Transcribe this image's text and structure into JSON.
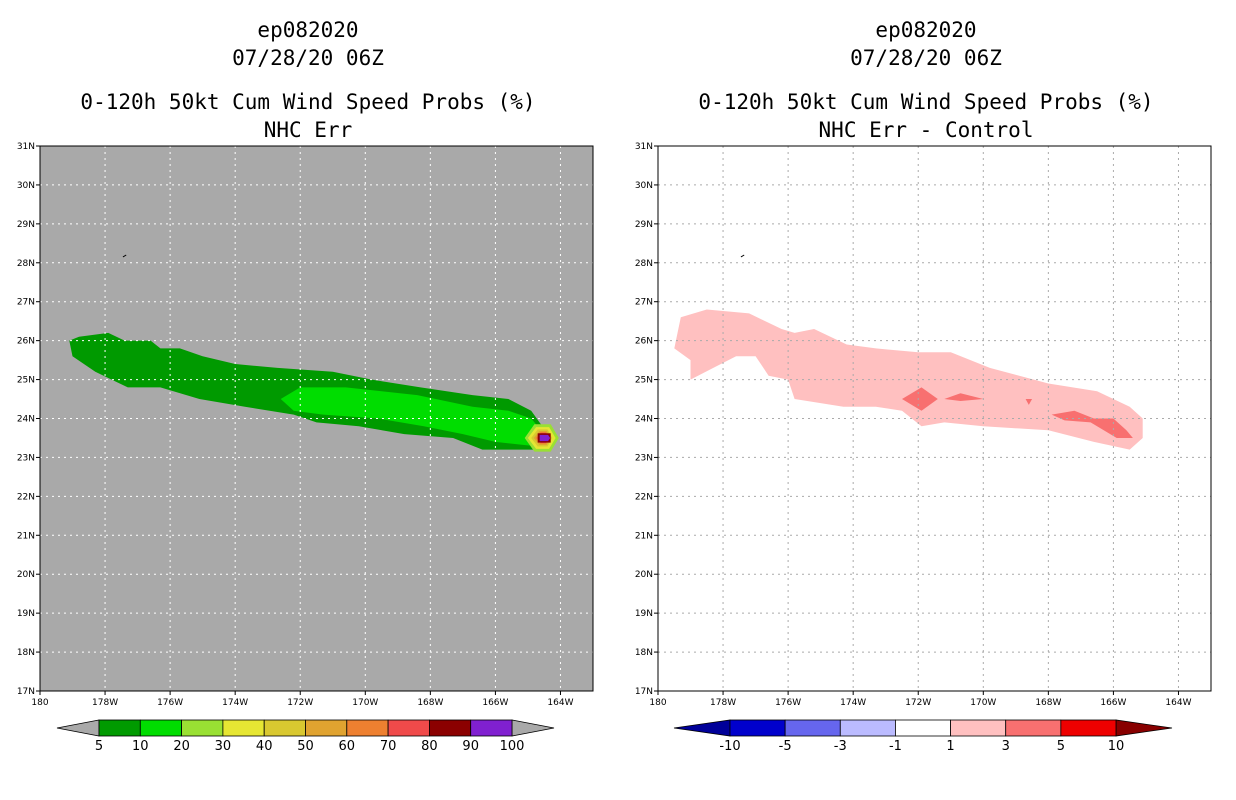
{
  "chart_data": [
    {
      "type": "heatmap",
      "panel": "left",
      "title_lines": [
        "ep082020",
        "07/28/20 06Z",
        "0-120h 50kt Cum Wind Speed Probs (%)",
        "NHC Err"
      ],
      "xlim": [
        -180,
        -163
      ],
      "ylim": [
        17,
        31
      ],
      "x_ticks": [
        -180,
        -178,
        -176,
        -174,
        -172,
        -170,
        -168,
        -166,
        -164
      ],
      "x_tick_labels": [
        "180",
        "178W",
        "176W",
        "174W",
        "172W",
        "170W",
        "168W",
        "166W",
        "164W"
      ],
      "y_ticks": [
        17,
        18,
        19,
        20,
        21,
        22,
        23,
        24,
        25,
        26,
        27,
        28,
        29,
        30,
        31
      ],
      "y_tick_labels": [
        "17N",
        "18N",
        "19N",
        "20N",
        "21N",
        "22N",
        "23N",
        "24N",
        "25N",
        "26N",
        "27N",
        "28N",
        "29N",
        "30N",
        "31N"
      ],
      "grid": true,
      "background": "#a9a9a9",
      "colorbar": {
        "labels": [
          "5",
          "10",
          "20",
          "30",
          "40",
          "50",
          "60",
          "70",
          "80",
          "90",
          "100"
        ],
        "colors": [
          "#009a00",
          "#00dd00",
          "#99e033",
          "#e6e633",
          "#d9c830",
          "#e0a330",
          "#ee8030",
          "#f04a4a",
          "#8b0000",
          "#8020d0"
        ],
        "end_color": "#a9a9a9"
      },
      "contours": [
        {
          "level": "5-10",
          "color": "#009a00",
          "points": [
            [
              -179.1,
              26.0
            ],
            [
              -178.8,
              26.1
            ],
            [
              -177.9,
              26.2
            ],
            [
              -177.4,
              26.0
            ],
            [
              -176.6,
              26.0
            ],
            [
              -176.3,
              25.8
            ],
            [
              -175.7,
              25.8
            ],
            [
              -175.0,
              25.6
            ],
            [
              -174.0,
              25.4
            ],
            [
              -172.7,
              25.3
            ],
            [
              -171.0,
              25.2
            ],
            [
              -169.8,
              25.0
            ],
            [
              -168.3,
              24.8
            ],
            [
              -166.7,
              24.6
            ],
            [
              -165.6,
              24.5
            ],
            [
              -164.9,
              24.2
            ],
            [
              -164.3,
              23.5
            ],
            [
              -164.7,
              23.2
            ],
            [
              -165.6,
              23.2
            ],
            [
              -166.4,
              23.2
            ],
            [
              -167.3,
              23.5
            ],
            [
              -168.8,
              23.6
            ],
            [
              -170.2,
              23.8
            ],
            [
              -171.5,
              23.9
            ],
            [
              -172.2,
              24.1
            ],
            [
              -173.7,
              24.3
            ],
            [
              -175.1,
              24.5
            ],
            [
              -176.3,
              24.8
            ],
            [
              -177.3,
              24.8
            ],
            [
              -178.3,
              25.2
            ],
            [
              -179.0,
              25.6
            ]
          ]
        },
        {
          "level": "10-20",
          "color": "#00dd00",
          "points": [
            [
              -172.6,
              24.5
            ],
            [
              -172.0,
              24.8
            ],
            [
              -170.6,
              24.8
            ],
            [
              -169.5,
              24.7
            ],
            [
              -168.4,
              24.6
            ],
            [
              -166.7,
              24.3
            ],
            [
              -165.6,
              24.2
            ],
            [
              -164.9,
              24.0
            ],
            [
              -164.4,
              23.5
            ],
            [
              -164.9,
              23.3
            ],
            [
              -166.0,
              23.4
            ],
            [
              -167.0,
              23.6
            ],
            [
              -168.2,
              23.8
            ],
            [
              -169.6,
              24.0
            ],
            [
              -171.3,
              24.1
            ],
            [
              -172.2,
              24.2
            ]
          ]
        },
        {
          "level": "20-30",
          "color": "#99e033",
          "points": [
            [
              -165.1,
              23.5
            ],
            [
              -164.8,
              23.85
            ],
            [
              -164.3,
              23.85
            ],
            [
              -164.05,
              23.5
            ],
            [
              -164.3,
              23.15
            ],
            [
              -164.8,
              23.15
            ]
          ]
        },
        {
          "level": "30-40",
          "color": "#e6e633",
          "points": [
            [
              -165.0,
              23.5
            ],
            [
              -164.75,
              23.78
            ],
            [
              -164.35,
              23.78
            ],
            [
              -164.15,
              23.5
            ],
            [
              -164.35,
              23.22
            ],
            [
              -164.75,
              23.22
            ]
          ]
        },
        {
          "level": "40-50",
          "color": "#d9c830",
          "points": [
            [
              -164.9,
              23.5
            ],
            [
              -164.7,
              23.72
            ],
            [
              -164.4,
              23.72
            ],
            [
              -164.25,
              23.5
            ],
            [
              -164.4,
              23.28
            ],
            [
              -164.7,
              23.28
            ]
          ]
        },
        {
          "level": "50-60",
          "color": "#e0a330",
          "points": [
            [
              -164.82,
              23.5
            ],
            [
              -164.65,
              23.68
            ],
            [
              -164.42,
              23.68
            ],
            [
              -164.3,
              23.5
            ],
            [
              -164.42,
              23.32
            ],
            [
              -164.65,
              23.32
            ]
          ]
        },
        {
          "level": "60-70",
          "color": "#ee8030",
          "points": [
            [
              -164.76,
              23.5
            ],
            [
              -164.62,
              23.65
            ],
            [
              -164.44,
              23.65
            ],
            [
              -164.34,
              23.5
            ],
            [
              -164.44,
              23.35
            ],
            [
              -164.62,
              23.35
            ]
          ]
        },
        {
          "level": "70-80",
          "color": "#f04a4a",
          "points": [
            [
              -164.72,
              23.5
            ],
            [
              -164.6,
              23.63
            ],
            [
              -164.45,
              23.63
            ],
            [
              -164.37,
              23.5
            ],
            [
              -164.45,
              23.37
            ],
            [
              -164.6,
              23.37
            ]
          ]
        },
        {
          "level": "80-90",
          "color": "#8b0000",
          "points": [
            [
              -164.7,
              23.62
            ],
            [
              -164.3,
              23.62
            ],
            [
              -164.3,
              23.38
            ],
            [
              -164.7,
              23.38
            ]
          ]
        },
        {
          "level": "90-100",
          "color": "#8020d0",
          "points": [
            [
              -164.64,
              23.58
            ],
            [
              -164.38,
              23.58
            ],
            [
              -164.32,
              23.5
            ],
            [
              -164.38,
              23.42
            ],
            [
              -164.64,
              23.42
            ]
          ]
        }
      ]
    },
    {
      "type": "heatmap",
      "panel": "right",
      "title_lines": [
        "ep082020",
        "07/28/20 06Z",
        "0-120h 50kt Cum Wind Speed Probs (%)",
        "NHC Err - Control"
      ],
      "xlim": [
        -180,
        -163
      ],
      "ylim": [
        17,
        31
      ],
      "x_ticks": [
        -180,
        -178,
        -176,
        -174,
        -172,
        -170,
        -168,
        -166,
        -164
      ],
      "x_tick_labels": [
        "180",
        "178W",
        "176W",
        "174W",
        "172W",
        "170W",
        "168W",
        "166W",
        "164W"
      ],
      "y_ticks": [
        17,
        18,
        19,
        20,
        21,
        22,
        23,
        24,
        25,
        26,
        27,
        28,
        29,
        30,
        31
      ],
      "y_tick_labels": [
        "17N",
        "18N",
        "19N",
        "20N",
        "21N",
        "22N",
        "23N",
        "24N",
        "25N",
        "26N",
        "27N",
        "28N",
        "29N",
        "30N",
        "31N"
      ],
      "grid": true,
      "background": "#ffffff",
      "colorbar": {
        "labels": [
          "-10",
          "-5",
          "-3",
          "-1",
          "1",
          "3",
          "5",
          "10"
        ],
        "colors": [
          "#0000cc",
          "#6666ee",
          "#bbbbff",
          "#ffffff",
          "#ffc0c0",
          "#f87070",
          "#ee0000"
        ],
        "left_end_color": "#000099",
        "right_end_color": "#880000"
      },
      "contours": [
        {
          "level": "1-3",
          "color": "#ffc0c0",
          "points": [
            [
              -179.5,
              25.8
            ],
            [
              -179.3,
              26.6
            ],
            [
              -178.5,
              26.8
            ],
            [
              -177.2,
              26.7
            ],
            [
              -176.2,
              26.3
            ],
            [
              -175.8,
              26.2
            ],
            [
              -175.2,
              26.3
            ],
            [
              -174.2,
              25.9
            ],
            [
              -173.3,
              25.8
            ],
            [
              -172.0,
              25.7
            ],
            [
              -171.0,
              25.7
            ],
            [
              -169.8,
              25.3
            ],
            [
              -168.0,
              24.9
            ],
            [
              -166.5,
              24.7
            ],
            [
              -165.5,
              24.3
            ],
            [
              -165.1,
              24.0
            ],
            [
              -165.1,
              23.5
            ],
            [
              -165.5,
              23.2
            ],
            [
              -166.6,
              23.4
            ],
            [
              -168.0,
              23.7
            ],
            [
              -170.0,
              23.8
            ],
            [
              -171.2,
              23.9
            ],
            [
              -171.9,
              23.8
            ],
            [
              -172.5,
              24.2
            ],
            [
              -173.3,
              24.3
            ],
            [
              -174.3,
              24.3
            ],
            [
              -175.8,
              24.5
            ],
            [
              -176.0,
              25.0
            ],
            [
              -176.6,
              25.1
            ],
            [
              -177.0,
              25.6
            ],
            [
              -177.6,
              25.6
            ],
            [
              -178.3,
              25.3
            ],
            [
              -179.0,
              25.0
            ],
            [
              -179.0,
              25.5
            ]
          ]
        },
        {
          "level": "3-5",
          "color": "#f87070",
          "points": [
            [
              -172.5,
              24.5
            ],
            [
              -171.9,
              24.8
            ],
            [
              -171.4,
              24.5
            ],
            [
              -171.9,
              24.2
            ]
          ]
        },
        {
          "level": "3-5",
          "color": "#f87070",
          "points": [
            [
              -171.2,
              24.5
            ],
            [
              -170.7,
              24.65
            ],
            [
              -170.0,
              24.5
            ],
            [
              -170.7,
              24.45
            ]
          ]
        },
        {
          "level": "3-5",
          "color": "#f87070",
          "points": [
            [
              -168.7,
              24.5
            ],
            [
              -168.5,
              24.5
            ],
            [
              -168.6,
              24.35
            ]
          ]
        },
        {
          "level": "3-5",
          "color": "#f87070",
          "points": [
            [
              -167.9,
              24.1
            ],
            [
              -167.2,
              24.2
            ],
            [
              -166.6,
              24.0
            ],
            [
              -166.0,
              24.0
            ],
            [
              -165.6,
              23.7
            ],
            [
              -165.4,
              23.5
            ],
            [
              -165.9,
              23.5
            ],
            [
              -166.7,
              23.9
            ],
            [
              -167.5,
              23.95
            ]
          ]
        }
      ]
    }
  ]
}
